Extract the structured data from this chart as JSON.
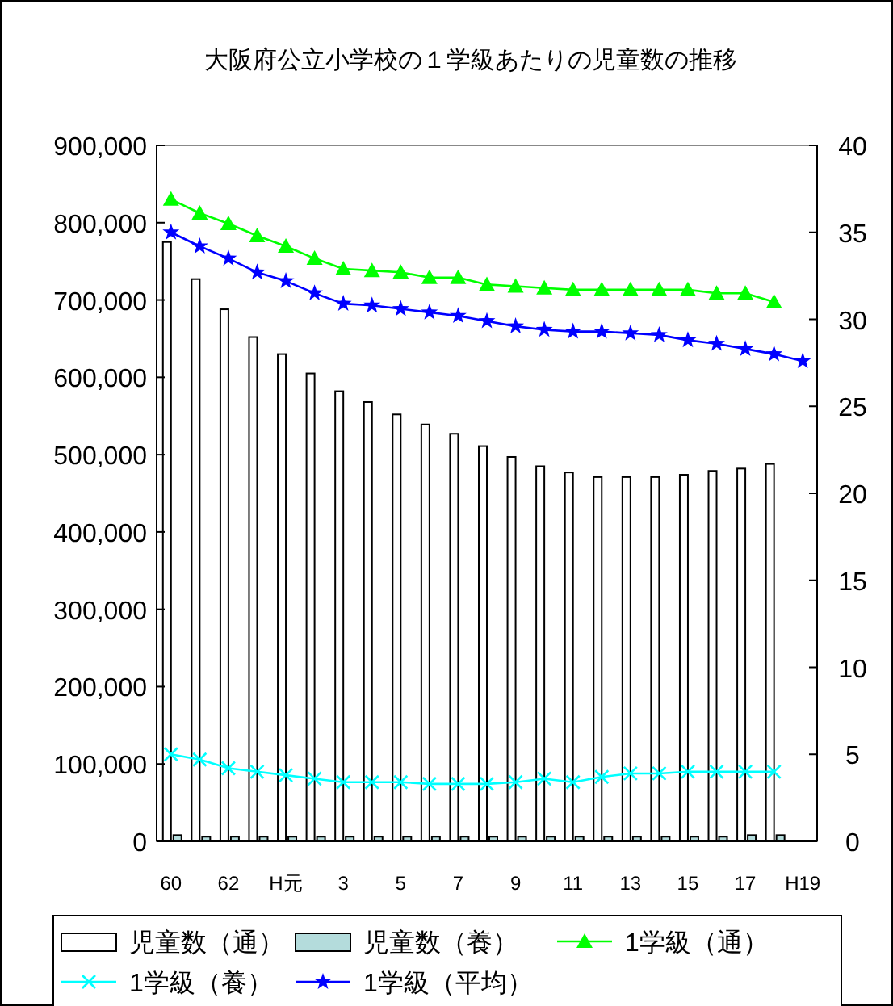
{
  "chart_data": {
    "type": "bar",
    "title": "大阪府公立小学校の１学級あたりの児童数の推移",
    "categories": [
      "60",
      null,
      "62",
      null,
      "H元",
      null,
      "3",
      null,
      "5",
      null,
      "7",
      null,
      "9",
      null,
      "11",
      null,
      "13",
      null,
      "15",
      null,
      "17",
      null,
      "H19"
    ],
    "series": [
      {
        "name": "児童数（通）",
        "color": "#ffffff",
        "values": [
          775000,
          727000,
          688000,
          652000,
          630000,
          605000,
          582000,
          568000,
          552000,
          539000,
          527000,
          511000,
          497000,
          485000,
          477000,
          471000,
          471000,
          471000,
          474000,
          479000,
          482000,
          488000,
          null
        ]
      },
      {
        "name": "児童数（養）",
        "color": "#b4dcdc",
        "values": [
          8000,
          6000,
          6000,
          6000,
          6000,
          6000,
          6000,
          6000,
          6000,
          6000,
          6000,
          6000,
          6000,
          6000,
          6000,
          6000,
          6000,
          6000,
          6000,
          6000,
          8000,
          8000,
          null
        ]
      },
      {
        "name": "1学級（通）",
        "type": "line",
        "axis": "y2",
        "marker": "triangle",
        "color": "#00ff00",
        "values": [
          36.9,
          36.1,
          35.5,
          34.8,
          34.2,
          33.5,
          32.9,
          32.8,
          32.7,
          32.4,
          32.4,
          32.0,
          31.9,
          31.8,
          31.7,
          31.7,
          31.7,
          31.7,
          31.7,
          31.5,
          31.5,
          31.0,
          null
        ]
      },
      {
        "name": "1学級（養）",
        "type": "line",
        "axis": "y2",
        "marker": "cross",
        "color": "#00ffff",
        "values": [
          5.0,
          4.7,
          4.2,
          4.0,
          3.8,
          3.6,
          3.4,
          3.4,
          3.4,
          3.3,
          3.3,
          3.3,
          3.4,
          3.6,
          3.4,
          3.7,
          3.9,
          3.9,
          4.0,
          4.0,
          4.0,
          4.0,
          null
        ]
      },
      {
        "name": "1学級（平均）",
        "type": "line",
        "axis": "y2",
        "marker": "star",
        "color": "#0000ff",
        "values": [
          35.0,
          34.2,
          33.5,
          32.7,
          32.2,
          31.5,
          30.9,
          30.8,
          30.6,
          30.4,
          30.2,
          29.9,
          29.6,
          29.4,
          29.3,
          29.3,
          29.2,
          29.1,
          28.8,
          28.6,
          28.3,
          28.0,
          27.6
        ]
      }
    ],
    "ylim": [
      0,
      900000
    ],
    "yticks": [
      0,
      {
        "value": 100000,
        "label": "100,000"
      },
      {
        "value": 200000,
        "label": "200,000"
      },
      {
        "value": 300000,
        "label": "300,000"
      },
      {
        "value": 400000,
        "label": "400,000"
      },
      {
        "value": 500000,
        "label": "500,000"
      },
      {
        "value": 600000,
        "label": "600,000"
      },
      {
        "value": 700000,
        "label": "700,000"
      },
      {
        "value": 800000,
        "label": "800,000"
      },
      {
        "value": 900000,
        "label": "900,000"
      }
    ],
    "y2lim": [
      0,
      40
    ],
    "y2ticks": [
      0,
      5,
      10,
      15,
      20,
      25,
      30,
      35,
      40
    ],
    "legend": "bottom",
    "grid": false
  }
}
